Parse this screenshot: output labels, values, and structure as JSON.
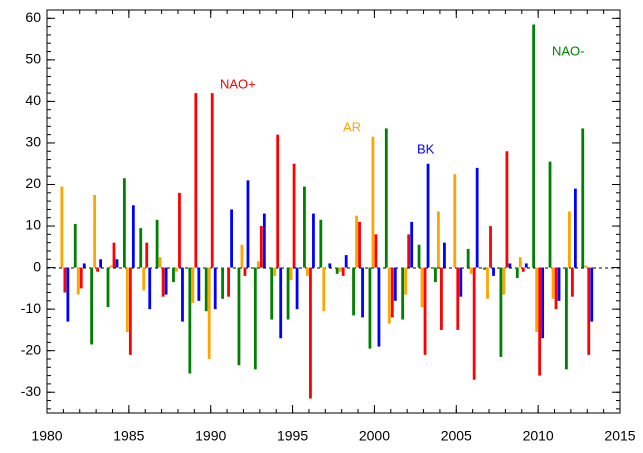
{
  "chart_data": {
    "type": "bar",
    "x": [
      1981,
      1982,
      1983,
      1984,
      1985,
      1986,
      1987,
      1988,
      1989,
      1990,
      1991,
      1992,
      1993,
      1994,
      1995,
      1996,
      1997,
      1998,
      1999,
      2000,
      2001,
      2002,
      2003,
      2004,
      2005,
      2006,
      2007,
      2008,
      2009,
      2010,
      2011,
      2012,
      2013
    ],
    "series": [
      {
        "name": "NAO-",
        "color": "#008000",
        "values": [
          0,
          10.5,
          -18.5,
          -9.5,
          21.5,
          9.5,
          11.5,
          -3.5,
          -25.5,
          -10.5,
          -7.5,
          -23.5,
          -24.5,
          -12.5,
          -12.5,
          19.5,
          11.5,
          -1.5,
          -11.5,
          -19.5,
          33.5,
          -12.5,
          5.5,
          -3.5,
          0,
          4.5,
          -0.5,
          -21.5,
          -2.5,
          58.5,
          25.5,
          -24.5,
          33.5
        ]
      },
      {
        "name": "AR",
        "color": "#ffa500",
        "values": [
          19.5,
          -6.5,
          17.5,
          0.5,
          -15.5,
          -5.5,
          2.5,
          -1,
          -8.5,
          -22,
          0,
          5.5,
          1.5,
          -2,
          -3,
          -2,
          -10.5,
          -1,
          12.5,
          31.5,
          -13.5,
          -6.5,
          -9.5,
          13.5,
          22.5,
          -1.5,
          -7.5,
          -6.5,
          2.5,
          -15.5,
          -7.5,
          13.5,
          0.5
        ]
      },
      {
        "name": "NAO+",
        "color": "#ff0000",
        "values": [
          -6,
          -5,
          -1,
          6,
          -21,
          6,
          -7,
          18,
          42,
          42,
          -7,
          -2,
          10,
          32,
          25,
          -31.5,
          0,
          -2,
          11,
          8,
          -12,
          8,
          -21,
          -15,
          -15,
          -27,
          10,
          28,
          -1,
          -26,
          -10,
          -7,
          -21
        ]
      },
      {
        "name": "BK",
        "color": "#0000ff",
        "values": [
          -13,
          1,
          2,
          2,
          15,
          -10,
          -6.5,
          -13,
          -8,
          -10,
          14,
          21,
          13,
          -17,
          -10,
          13,
          1,
          3,
          -12,
          -19,
          -8,
          11,
          25,
          6,
          -7,
          24,
          -2,
          1,
          1,
          -17,
          -8,
          19,
          -13
        ]
      }
    ],
    "xlim": [
      1980,
      2015
    ],
    "xticks": [
      1980,
      1985,
      1990,
      1995,
      2000,
      2005,
      2010,
      2015
    ],
    "ylim": [
      -35,
      62
    ],
    "yticks": [
      -30,
      -20,
      -10,
      0,
      10,
      20,
      30,
      40,
      50,
      60
    ]
  }
}
